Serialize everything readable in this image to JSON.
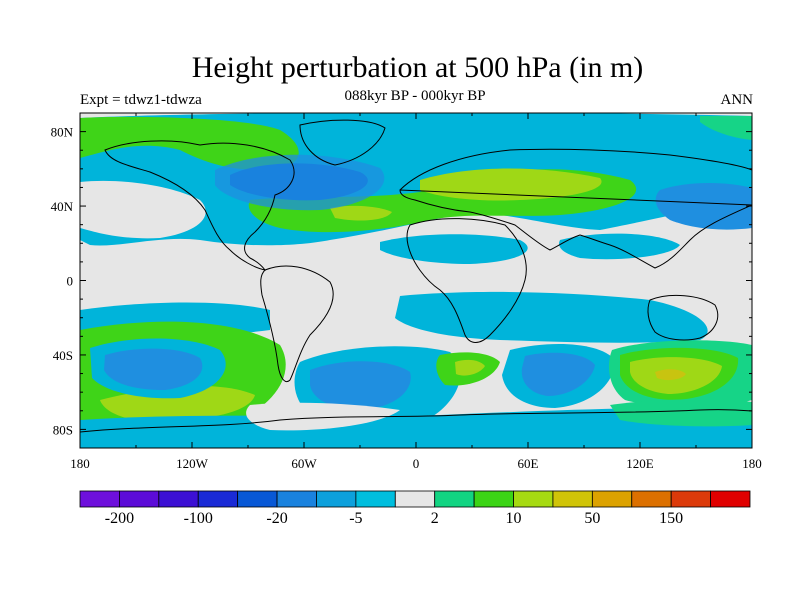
{
  "title": "Height perturbation at 500 hPa (in m)",
  "subtitle": "088kyr BP - 000kyr BP",
  "expt_label": "Expt = tdwz1-tdwza",
  "season": "ANN",
  "map": {
    "lon_ticks": [
      "180",
      "120W",
      "60W",
      "0",
      "60E",
      "120E",
      "180"
    ],
    "lat_ticks": [
      "80N",
      "40N",
      "0",
      "40S",
      "80S"
    ],
    "colors": {
      "land_neutral": "#e6e6e6",
      "light_blue": "#00b4da",
      "mid_blue": "#1f8fe0",
      "dark_blue": "#0a5bd6",
      "aqua_green": "#16d487",
      "green": "#3fd418",
      "yellow_green": "#9fd816",
      "olive": "#c8c410",
      "orange": "#d9a400"
    }
  },
  "colorbar": {
    "colors": [
      "#6e10dc",
      "#5c0cd8",
      "#3c10d4",
      "#1a2ad6",
      "#0858d6",
      "#1a82de",
      "#0da0dc",
      "#00bede",
      "#e6e6e6",
      "#12d482",
      "#3cd416",
      "#a6da12",
      "#d0c408",
      "#dca200",
      "#dc7000",
      "#dc3a0a",
      "#e00000"
    ],
    "labels": [
      "-200",
      "-100",
      "-20",
      "-5",
      "2",
      "10",
      "50",
      "150"
    ]
  }
}
